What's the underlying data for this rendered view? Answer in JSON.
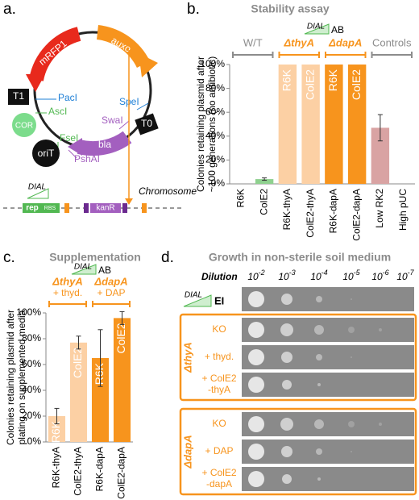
{
  "panel_labels": [
    "a.",
    "b.",
    "c.",
    "d."
  ],
  "diagram": {
    "mrfp": "mRFP1",
    "auxo": "auxo",
    "t1": "T1",
    "paci": "PacI",
    "asci": "AscI",
    "cor": "COR",
    "fsei": "FseI",
    "orit": "oriT",
    "pshai": "PshAI",
    "swai": "SwaI",
    "spei": "SpeI",
    "t0": "T0",
    "bla": "bla",
    "dial": "DIAL",
    "rep": "rep",
    "rbs": "RBS",
    "kanr": "kanR",
    "chromosome": "Chromosome"
  },
  "chart_data": [
    {
      "type": "bar",
      "title": "Stability assay",
      "ylabel": [
        "Colonies retaining plasmid after",
        "~100 generations (no antibiotic)"
      ],
      "annotation": {
        "text": "DIAL",
        "suffix": "AB"
      },
      "categories": [
        "R6K",
        "ColE2",
        "R6K-thyA",
        "ColE2-thyA",
        "R6K-dapA",
        "ColE2-dapA",
        "Low RK2",
        "High pUC"
      ],
      "values": [
        0,
        4,
        100,
        100,
        100,
        100,
        47,
        0
      ],
      "errors": [
        null,
        1,
        null,
        null,
        null,
        null,
        11,
        null
      ],
      "colors": [
        "#8fd18f",
        "#8fd18f",
        "#fcd0a4",
        "#fcd0a4",
        "#f7941d",
        "#f7941d",
        "#d9a3a3",
        "#d9a3a3"
      ],
      "bar_labels": [
        null,
        null,
        "R6K",
        "ColE2",
        "R6K",
        "ColE2",
        null,
        null
      ],
      "groups": [
        {
          "label": "W/T",
          "color": "#8c8c8c"
        },
        {
          "label": "ΔthyA",
          "color": "#f7941d"
        },
        {
          "label": "ΔdapA",
          "color": "#f7941d"
        },
        {
          "label": "Controls",
          "color": "#8c8c8c"
        }
      ],
      "ylim": [
        0,
        100
      ],
      "yticks": [
        {
          "value": 0,
          "label": "0%"
        },
        {
          "value": 20,
          "label": "20%"
        },
        {
          "value": 40,
          "label": "40%"
        },
        {
          "value": 60,
          "label": "60%"
        },
        {
          "value": 80,
          "label": "80%"
        },
        {
          "value": 100,
          "label": "100%"
        }
      ]
    },
    {
      "type": "bar",
      "title": "Supplementation",
      "ylabel": [
        "Colonies retaining plasmid after",
        "plating on supplemented media"
      ],
      "annotation": {
        "text": "DIAL",
        "suffix": "AB"
      },
      "categories": [
        "R6K-thyA",
        "ColE2-thyA",
        "R6K-dapA",
        "ColE2-dapA"
      ],
      "values": [
        20,
        77,
        65,
        96
      ],
      "errors": [
        6,
        5,
        22,
        5
      ],
      "colors": [
        "#fcd0a4",
        "#fcd0a4",
        "#f7941d",
        "#f7941d"
      ],
      "bar_labels": [
        "R6K",
        "ColE2",
        "R6K",
        "ColE2"
      ],
      "groups": [
        {
          "label": "ΔthyA",
          "sublabel": "+ thyd.",
          "color": "#f7941d"
        },
        {
          "label": "ΔdapA",
          "sublabel": "+ DAP",
          "color": "#f7941d"
        }
      ],
      "ylim": [
        0,
        100
      ],
      "yticks": [
        {
          "value": 0,
          "label": "0%"
        },
        {
          "value": 20,
          "label": "20%"
        },
        {
          "value": 40,
          "label": "40%"
        },
        {
          "value": 60,
          "label": "60%"
        },
        {
          "value": 80,
          "label": "80%"
        },
        {
          "value": 100,
          "label": "100%"
        }
      ]
    }
  ],
  "plates": {
    "title": "Growth in non-sterile soil medium",
    "dilution_label": "Dilution",
    "dilutions": [
      {
        "base": "10",
        "exp": "-2"
      },
      {
        "base": "10",
        "exp": "-3"
      },
      {
        "base": "10",
        "exp": "-4"
      },
      {
        "base": "10",
        "exp": "-5"
      },
      {
        "base": "10",
        "exp": "-6"
      },
      {
        "base": "10",
        "exp": "-7"
      }
    ],
    "control": {
      "annotation": "DIAL",
      "label": "EI"
    },
    "groups": [
      {
        "label": "ΔthyA",
        "rows": [
          [
            "KO"
          ],
          [
            "+ thyd."
          ],
          [
            "+ ColE2",
            "-thyA"
          ]
        ]
      },
      {
        "label": "ΔdapA",
        "rows": [
          [
            "KO"
          ],
          [
            "+ DAP"
          ],
          [
            "+ ColE2",
            "-dapA"
          ]
        ]
      }
    ]
  }
}
